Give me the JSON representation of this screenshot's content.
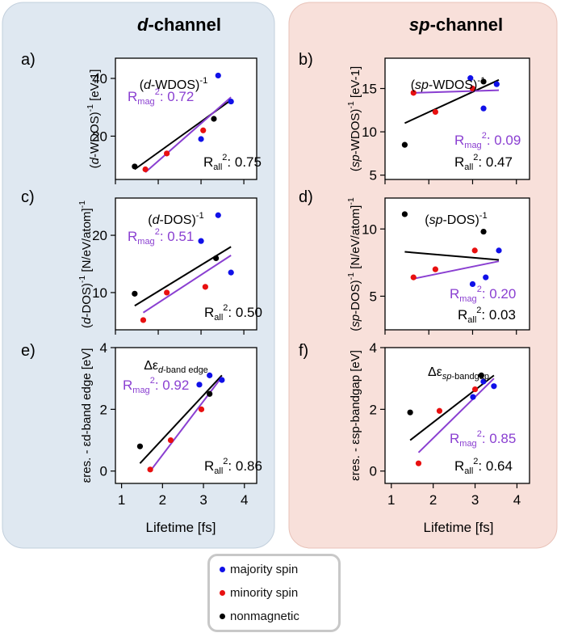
{
  "panels_header": {
    "d_channel": {
      "italic": "d",
      "rest": "-channel"
    },
    "sp_channel": {
      "italic": "sp",
      "rest": "-channel"
    }
  },
  "colors": {
    "majority": "#1010e8",
    "minority": "#e81010",
    "nonmagnetic": "#000000",
    "fit_mag": "#8a3fd1",
    "fit_all": "#000000",
    "d_bg": "#dfe8f1",
    "sp_bg": "#f8e0da"
  },
  "x_axis_label": "Lifetime [fs]",
  "legend": {
    "majority": "majority spin",
    "minority": "minority spin",
    "nonmagnetic": "nonmagnetic"
  },
  "chart_data": [
    {
      "id": "a",
      "panel_label": "a)",
      "type": "scatter",
      "title": "(d-WDOS)-1",
      "ylabel": "(d-WDOS)-1 [eV-1]",
      "xlim": [
        1,
        4.3
      ],
      "ylim": [
        5,
        47
      ],
      "yticks": [
        20,
        40
      ],
      "xticks": [
        1,
        2,
        3,
        4
      ],
      "show_xticklabels": false,
      "r_mag": "0.72",
      "r_all": "0.75",
      "points": [
        {
          "series": "nonmagnetic",
          "x": 1.45,
          "y": 9.5
        },
        {
          "series": "minority",
          "x": 1.7,
          "y": 8.5
        },
        {
          "series": "minority",
          "x": 2.2,
          "y": 14
        },
        {
          "series": "majority",
          "x": 3.0,
          "y": 19
        },
        {
          "series": "minority",
          "x": 3.05,
          "y": 22
        },
        {
          "series": "nonmagnetic",
          "x": 3.3,
          "y": 26
        },
        {
          "series": "majority",
          "x": 3.4,
          "y": 41
        },
        {
          "series": "majority",
          "x": 3.7,
          "y": 32
        }
      ],
      "fit_mag": [
        [
          1.7,
          7.5
        ],
        [
          3.7,
          33.5
        ]
      ],
      "fit_all": [
        [
          1.45,
          8.5
        ],
        [
          3.7,
          32.5
        ]
      ]
    },
    {
      "id": "b",
      "panel_label": "b)",
      "type": "scatter",
      "title": "(sp-WDOS)-1",
      "ylabel": "(sp-WDOS)-1 [eV-1]",
      "xlim": [
        1,
        4.3
      ],
      "ylim": [
        4.5,
        18.5
      ],
      "yticks": [
        5,
        10,
        15
      ],
      "xticks": [
        1,
        2,
        3,
        4
      ],
      "show_xticklabels": false,
      "r_mag": "0.09",
      "r_all": "0.47",
      "points": [
        {
          "series": "nonmagnetic",
          "x": 1.45,
          "y": 8.5
        },
        {
          "series": "minority",
          "x": 1.65,
          "y": 14.5
        },
        {
          "series": "minority",
          "x": 2.15,
          "y": 12.3
        },
        {
          "series": "majority",
          "x": 2.95,
          "y": 16.2
        },
        {
          "series": "minority",
          "x": 3.0,
          "y": 15.0
        },
        {
          "series": "nonmagnetic",
          "x": 3.25,
          "y": 15.8
        },
        {
          "series": "majority",
          "x": 3.25,
          "y": 12.7
        },
        {
          "series": "majority",
          "x": 3.55,
          "y": 15.5
        }
      ],
      "fit_mag": [
        [
          1.65,
          14.5
        ],
        [
          3.6,
          14.8
        ]
      ],
      "fit_all": [
        [
          1.45,
          11.0
        ],
        [
          3.6,
          16.0
        ]
      ]
    },
    {
      "id": "c",
      "panel_label": "c)",
      "type": "scatter",
      "title": "(d-DOS)-1",
      "ylabel": "(d-DOS)-1 [N/eV/atom]-1",
      "xlim": [
        1,
        4.3
      ],
      "ylim": [
        3.5,
        26.5
      ],
      "yticks": [
        10,
        20
      ],
      "xticks": [
        1,
        2,
        3,
        4
      ],
      "show_xticklabels": false,
      "r_mag": "0.51",
      "r_all": "0.50",
      "points": [
        {
          "series": "nonmagnetic",
          "x": 1.45,
          "y": 9.8
        },
        {
          "series": "minority",
          "x": 1.65,
          "y": 5.2
        },
        {
          "series": "minority",
          "x": 2.2,
          "y": 10
        },
        {
          "series": "majority",
          "x": 3.0,
          "y": 19
        },
        {
          "series": "minority",
          "x": 3.1,
          "y": 11
        },
        {
          "series": "nonmagnetic",
          "x": 3.35,
          "y": 16
        },
        {
          "series": "majority",
          "x": 3.4,
          "y": 23.5
        },
        {
          "series": "majority",
          "x": 3.7,
          "y": 13.5
        }
      ],
      "fit_mag": [
        [
          1.65,
          6.5
        ],
        [
          3.7,
          16.5
        ]
      ],
      "fit_all": [
        [
          1.45,
          7.7
        ],
        [
          3.7,
          18.0
        ]
      ]
    },
    {
      "id": "d",
      "panel_label": "d)",
      "type": "scatter",
      "title": "(sp-DOS)-1",
      "ylabel": "(sp-DOS)-1 [N/eV/atom]-1",
      "xlim": [
        1,
        4.3
      ],
      "ylim": [
        2.5,
        12.3
      ],
      "yticks": [
        5,
        10
      ],
      "xticks": [
        1,
        2,
        3,
        4
      ],
      "show_xticklabels": false,
      "r_mag": "0.20",
      "r_all": "0.03",
      "points": [
        {
          "series": "nonmagnetic",
          "x": 1.45,
          "y": 11.1
        },
        {
          "series": "minority",
          "x": 1.65,
          "y": 6.4
        },
        {
          "series": "minority",
          "x": 2.15,
          "y": 7.0
        },
        {
          "series": "majority",
          "x": 3.0,
          "y": 5.9
        },
        {
          "series": "minority",
          "x": 3.05,
          "y": 8.4
        },
        {
          "series": "nonmagnetic",
          "x": 3.25,
          "y": 9.8
        },
        {
          "series": "majority",
          "x": 3.3,
          "y": 6.4
        },
        {
          "series": "majority",
          "x": 3.6,
          "y": 8.4
        }
      ],
      "fit_mag": [
        [
          1.65,
          6.3
        ],
        [
          3.6,
          7.6
        ]
      ],
      "fit_all": [
        [
          1.45,
          8.3
        ],
        [
          3.6,
          7.7
        ]
      ]
    },
    {
      "id": "e",
      "panel_label": "e)",
      "type": "scatter",
      "title": "Δεd-band edge",
      "ylabel": "εres. - εd-band edge [eV]",
      "xlim": [
        0.85,
        4.3
      ],
      "ylim": [
        -0.4,
        4.0
      ],
      "yticks": [
        0,
        2,
        4
      ],
      "xticks": [
        1,
        2,
        3,
        4
      ],
      "show_xticklabels": true,
      "r_mag": "0.92",
      "r_all": "0.86",
      "points": [
        {
          "series": "nonmagnetic",
          "x": 1.45,
          "y": 0.8
        },
        {
          "series": "minority",
          "x": 1.7,
          "y": 0.05
        },
        {
          "series": "minority",
          "x": 2.2,
          "y": 1.0
        },
        {
          "series": "majority",
          "x": 2.9,
          "y": 2.8
        },
        {
          "series": "minority",
          "x": 2.95,
          "y": 2.0
        },
        {
          "series": "majority",
          "x": 3.15,
          "y": 3.1
        },
        {
          "series": "nonmagnetic",
          "x": 3.15,
          "y": 2.5
        },
        {
          "series": "majority",
          "x": 3.45,
          "y": 2.95
        }
      ],
      "fit_mag": [
        [
          1.7,
          0.0
        ],
        [
          3.45,
          3.05
        ]
      ],
      "fit_all": [
        [
          1.45,
          0.25
        ],
        [
          3.45,
          3.1
        ]
      ]
    },
    {
      "id": "f",
      "panel_label": "f)",
      "type": "scatter",
      "title": "Δεsp-bandgap",
      "ylabel": "εres. - εsp-bandgap [eV]",
      "xlim": [
        0.85,
        4.3
      ],
      "ylim": [
        -0.4,
        4.0
      ],
      "yticks": [
        0,
        2,
        4
      ],
      "xticks": [
        1,
        2,
        3,
        4
      ],
      "show_xticklabels": true,
      "r_mag": "0.85",
      "r_all": "0.64",
      "points": [
        {
          "series": "nonmagnetic",
          "x": 1.45,
          "y": 1.9
        },
        {
          "series": "minority",
          "x": 1.65,
          "y": 0.25
        },
        {
          "series": "minority",
          "x": 2.15,
          "y": 1.95
        },
        {
          "series": "majority",
          "x": 2.95,
          "y": 2.4
        },
        {
          "series": "minority",
          "x": 3.0,
          "y": 2.65
        },
        {
          "series": "nonmagnetic",
          "x": 3.15,
          "y": 3.1
        },
        {
          "series": "majority",
          "x": 3.2,
          "y": 2.9
        },
        {
          "series": "majority",
          "x": 3.45,
          "y": 2.75
        }
      ],
      "fit_mag": [
        [
          1.65,
          0.6
        ],
        [
          3.45,
          3.0
        ]
      ],
      "fit_all": [
        [
          1.45,
          1.0
        ],
        [
          3.45,
          3.1
        ]
      ]
    }
  ]
}
